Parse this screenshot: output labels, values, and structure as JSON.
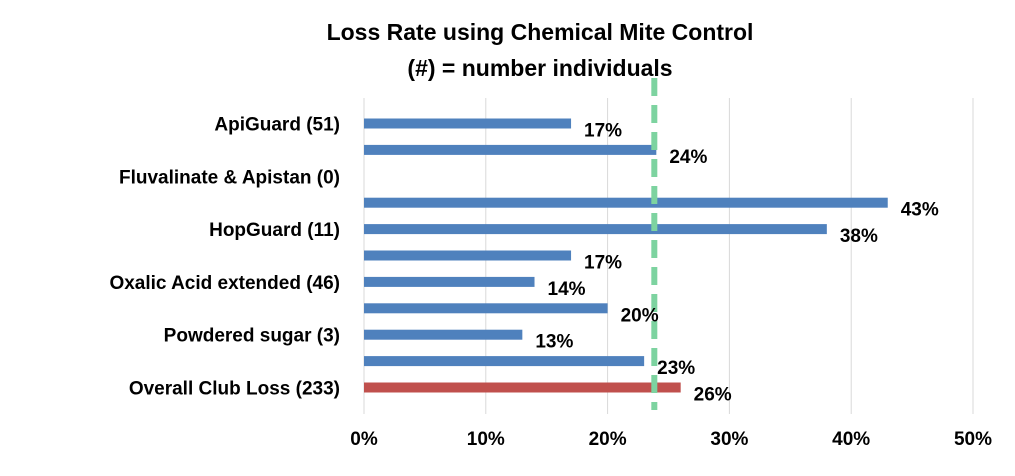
{
  "chart_data": {
    "type": "bar",
    "orientation": "horizontal",
    "title": "Loss Rate using Chemical Mite Control",
    "subtitle": "(#) = number individuals",
    "xlabel": "",
    "ylabel": "",
    "xlim": [
      0,
      0.5
    ],
    "x_ticks": [
      "0%",
      "10%",
      "20%",
      "30%",
      "40%",
      "50%"
    ],
    "x_tick_values": [
      0,
      0.1,
      0.2,
      0.3,
      0.4,
      0.5
    ],
    "grid": "vertical",
    "legend": "none",
    "category_labels": [
      "ApiGuard (51)",
      "",
      "Fluvalinate & Apistan (0)",
      "",
      "HopGuard (11)",
      "",
      "Oxalic Acid extended (46)",
      "",
      "Powdered sugar (3)",
      "",
      "Overall Club Loss (233)"
    ],
    "values": [
      0.17,
      0.24,
      null,
      0.43,
      0.38,
      0.17,
      0.14,
      0.2,
      0.13,
      0.23,
      0.26
    ],
    "data_labels": [
      "17%",
      "24%",
      "",
      "43%",
      "38%",
      "17%",
      "14%",
      "20%",
      "13%",
      "23%",
      "26%"
    ],
    "highlight_index": 10,
    "reference_line": {
      "value": 0.24,
      "style": "dashed"
    },
    "colors": {
      "bar": "#4f81bd",
      "highlight_bar": "#c0504d",
      "reference_line": "#7dd3a0",
      "grid": "#d9d9d9"
    }
  }
}
